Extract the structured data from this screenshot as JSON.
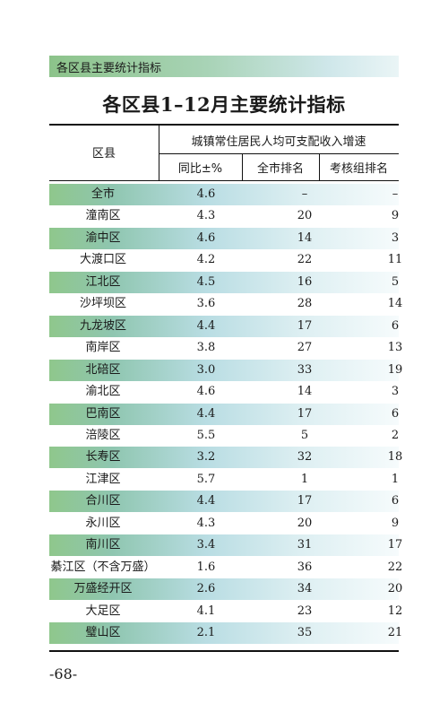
{
  "header": {
    "band_label": "各区县主要统计指标"
  },
  "title": "各区县1–12月主要统计指标",
  "table": {
    "col_district": "区县",
    "group_header": "城镇常住居民人均可支配收入增速",
    "col_yoy": "同比±%",
    "col_city_rank": "全市排名",
    "col_group_rank": "考核组排名",
    "rows": [
      {
        "name": "全市",
        "yoy": "4.6",
        "city_rank": "–",
        "group_rank": "–",
        "shaded": true
      },
      {
        "name": "潼南区",
        "yoy": "4.3",
        "city_rank": "20",
        "group_rank": "9",
        "shaded": false
      },
      {
        "name": "渝中区",
        "yoy": "4.6",
        "city_rank": "14",
        "group_rank": "3",
        "shaded": true
      },
      {
        "name": "大渡口区",
        "yoy": "4.2",
        "city_rank": "22",
        "group_rank": "11",
        "shaded": false
      },
      {
        "name": "江北区",
        "yoy": "4.5",
        "city_rank": "16",
        "group_rank": "5",
        "shaded": true
      },
      {
        "name": "沙坪坝区",
        "yoy": "3.6",
        "city_rank": "28",
        "group_rank": "14",
        "shaded": false
      },
      {
        "name": "九龙坡区",
        "yoy": "4.4",
        "city_rank": "17",
        "group_rank": "6",
        "shaded": true
      },
      {
        "name": "南岸区",
        "yoy": "3.8",
        "city_rank": "27",
        "group_rank": "13",
        "shaded": false
      },
      {
        "name": "北碚区",
        "yoy": "3.0",
        "city_rank": "33",
        "group_rank": "19",
        "shaded": true
      },
      {
        "name": "渝北区",
        "yoy": "4.6",
        "city_rank": "14",
        "group_rank": "3",
        "shaded": false
      },
      {
        "name": "巴南区",
        "yoy": "4.4",
        "city_rank": "17",
        "group_rank": "6",
        "shaded": true
      },
      {
        "name": "涪陵区",
        "yoy": "5.5",
        "city_rank": "5",
        "group_rank": "2",
        "shaded": false
      },
      {
        "name": "长寿区",
        "yoy": "3.2",
        "city_rank": "32",
        "group_rank": "18",
        "shaded": true
      },
      {
        "name": "江津区",
        "yoy": "5.7",
        "city_rank": "1",
        "group_rank": "1",
        "shaded": false
      },
      {
        "name": "合川区",
        "yoy": "4.4",
        "city_rank": "17",
        "group_rank": "6",
        "shaded": true
      },
      {
        "name": "永川区",
        "yoy": "4.3",
        "city_rank": "20",
        "group_rank": "9",
        "shaded": false
      },
      {
        "name": "南川区",
        "yoy": "3.4",
        "city_rank": "31",
        "group_rank": "17",
        "shaded": true
      },
      {
        "name": "綦江区（不含万盛）",
        "yoy": "1.6",
        "city_rank": "36",
        "group_rank": "22",
        "shaded": false
      },
      {
        "name": "万盛经开区",
        "yoy": "2.6",
        "city_rank": "34",
        "group_rank": "20",
        "shaded": true
      },
      {
        "name": "大足区",
        "yoy": "4.1",
        "city_rank": "23",
        "group_rank": "12",
        "shaded": false
      },
      {
        "name": "璧山区",
        "yoy": "2.1",
        "city_rank": "35",
        "group_rank": "21",
        "shaded": true
      }
    ]
  },
  "footer": {
    "page_number": "-68-"
  }
}
